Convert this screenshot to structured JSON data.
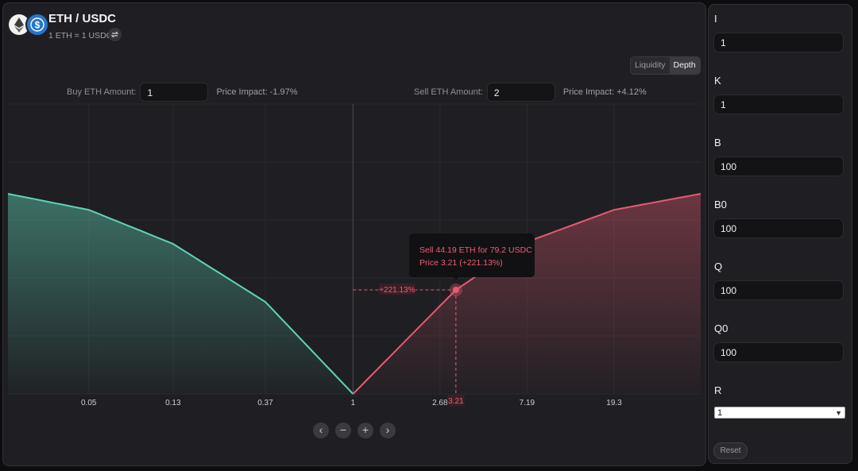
{
  "header": {
    "pair_title": "ETH / USDC",
    "rate_text": "1 ETH = 1 USDC",
    "base_icon": "eth-logo-icon",
    "quote_icon": "usdc-logo-icon"
  },
  "view_toggle": {
    "options": [
      "Liquidity",
      "Depth"
    ],
    "active": "Depth"
  },
  "buy": {
    "label": "Buy ETH Amount:",
    "value": "1",
    "impact": "Price Impact: -1.97%"
  },
  "sell": {
    "label": "Sell ETH Amount:",
    "value": "2",
    "impact": "Price Impact: +4.12%"
  },
  "tooltip": {
    "line1": "Sell 44.19 ETH for 79.2 USDC",
    "line2": "Price 3.21 (+221.13%)"
  },
  "crosshair": {
    "y_label": "+221.13%",
    "x_label": "3.21",
    "price": 3.21
  },
  "chart_data": {
    "type": "area",
    "x_scale": "log",
    "x_ticks": [
      "0.05",
      "0.13",
      "0.37",
      "1",
      "2.68",
      "7.19",
      "19.3"
    ],
    "x_range": [
      0.02,
      51.5
    ],
    "mid_price": 1,
    "series": [
      {
        "side": "buy",
        "x": [
          0.02,
          0.05,
          0.13,
          0.37,
          1
        ],
        "depth": [
          1.0,
          0.92,
          0.75,
          0.46,
          0.0
        ]
      },
      {
        "side": "sell",
        "x": [
          1,
          2.68,
          3.21,
          7.19,
          19.3,
          51.5
        ],
        "depth": [
          0.0,
          0.44,
          0.52,
          0.76,
          0.92,
          1.0
        ]
      }
    ],
    "colors": {
      "buy": "#5fd4b9",
      "sell": "#e75b72"
    }
  },
  "chart_controls": {
    "prev_icon": "chevron-left-icon",
    "zoom_out_icon": "minus-icon",
    "zoom_in_icon": "plus-icon",
    "next_icon": "chevron-right-icon"
  },
  "params": [
    {
      "label": "I",
      "value": "1"
    },
    {
      "label": "K",
      "value": "1"
    },
    {
      "label": "B",
      "value": "100"
    },
    {
      "label": "B0",
      "value": "100"
    },
    {
      "label": "Q",
      "value": "100"
    },
    {
      "label": "Q0",
      "value": "100"
    }
  ],
  "r_param": {
    "label": "R",
    "value": "1"
  },
  "reset_label": "Reset"
}
